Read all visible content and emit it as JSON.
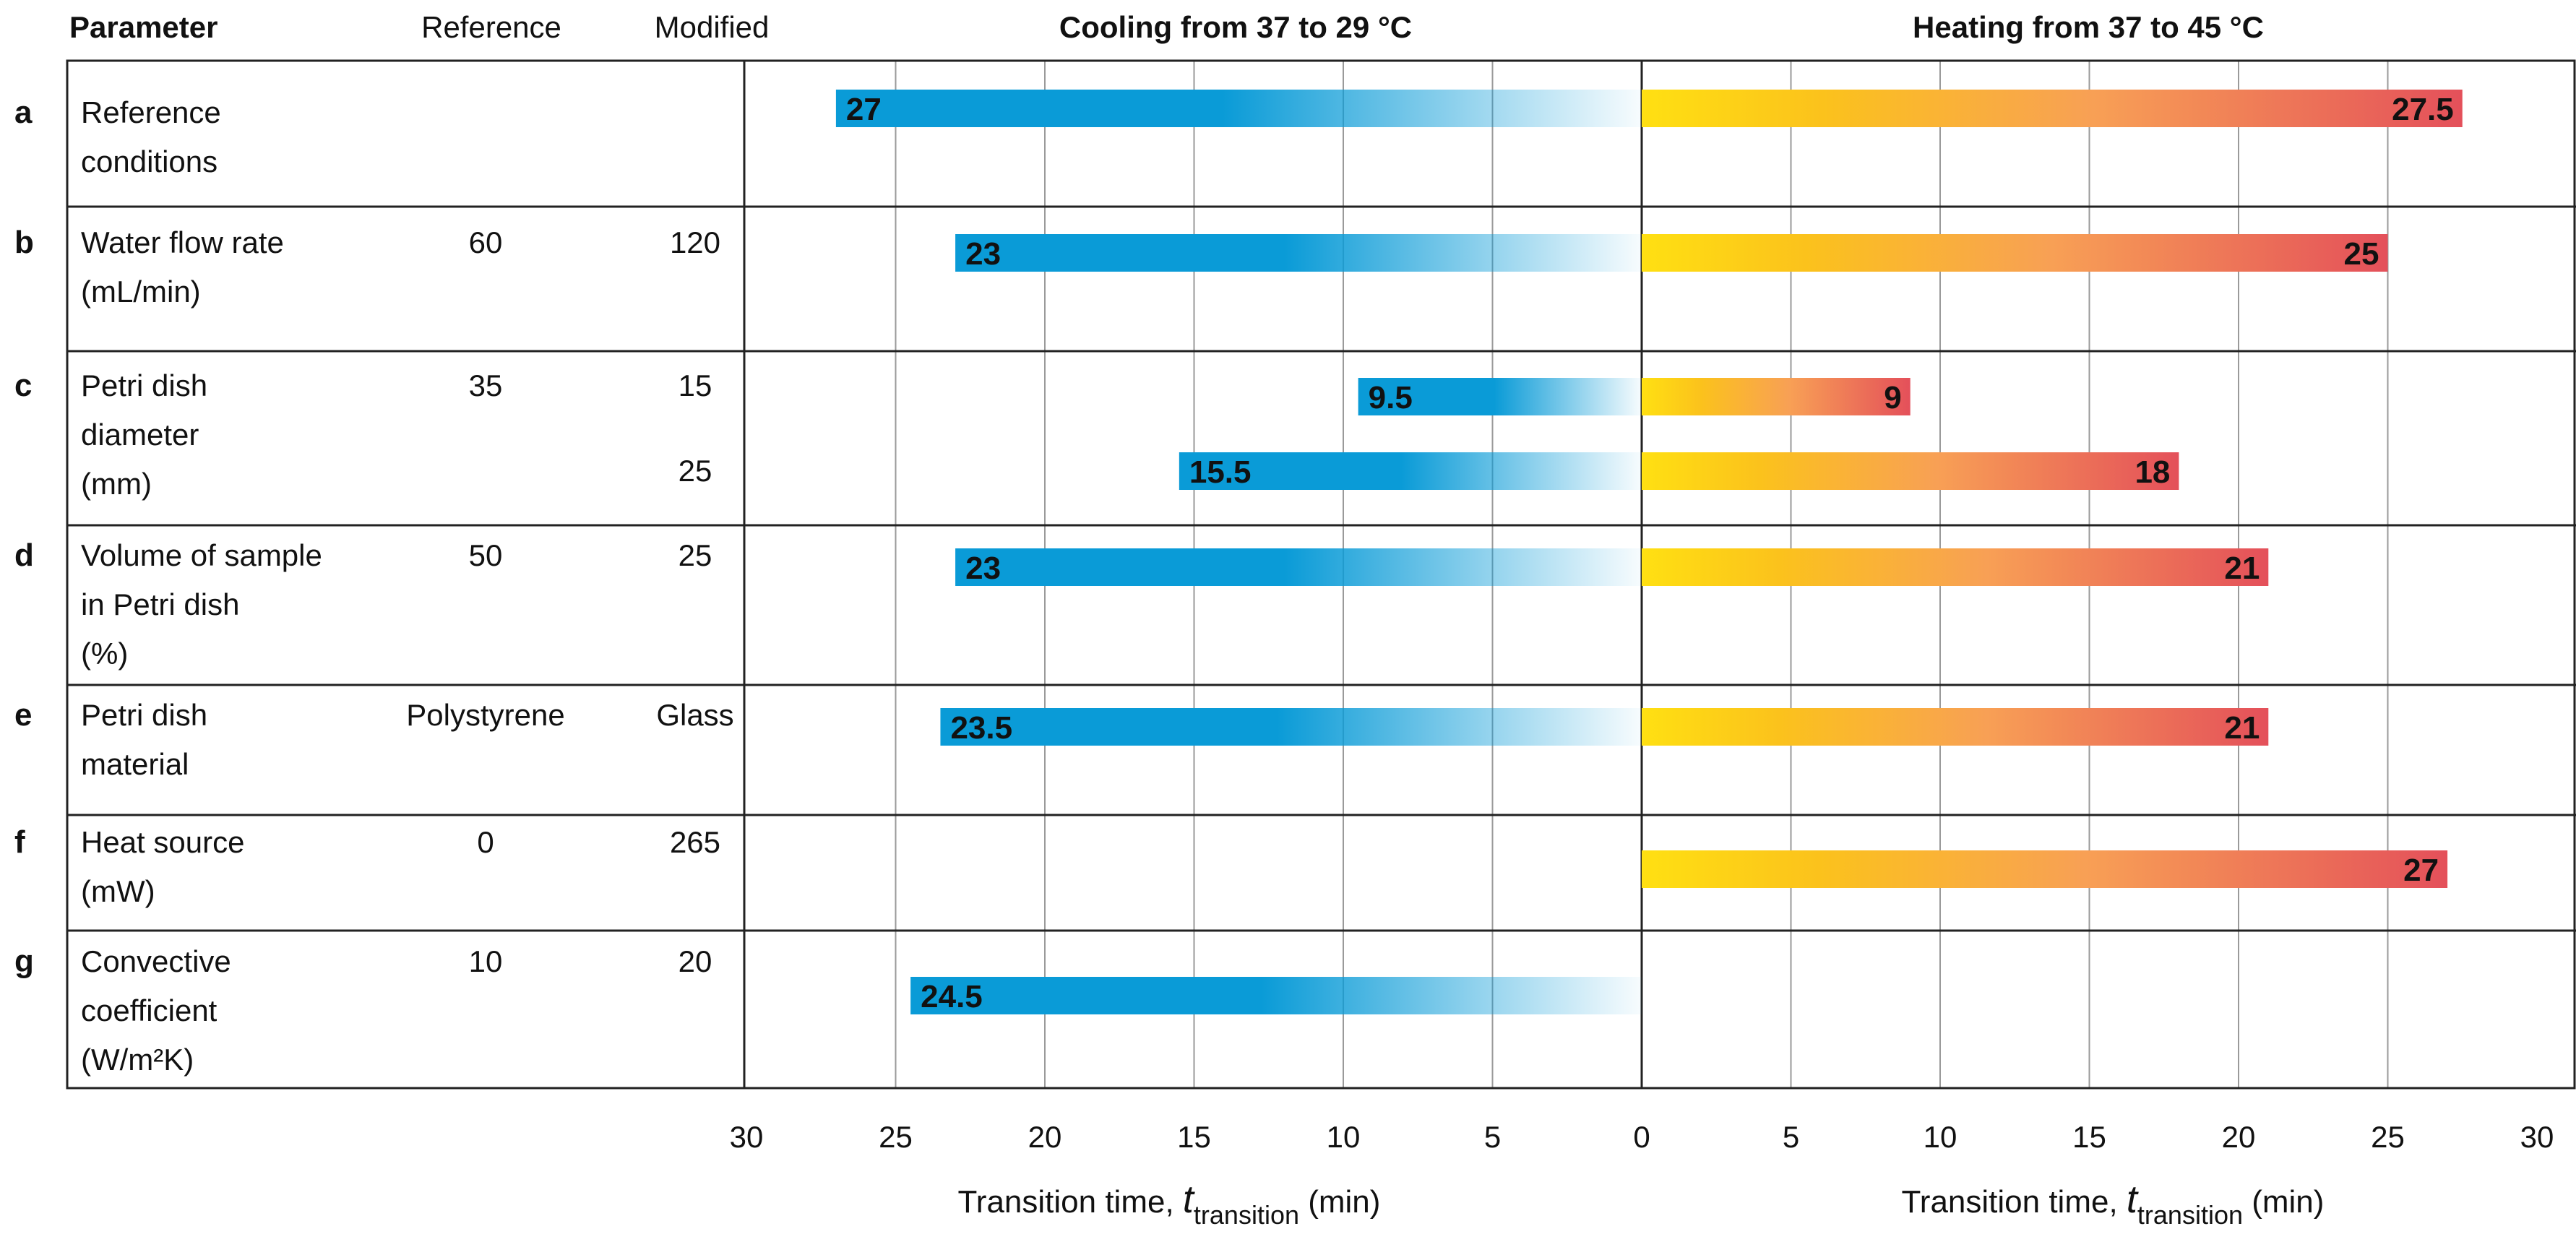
{
  "header": {
    "parameter": "Parameter",
    "reference": "Reference",
    "modified": "Modified",
    "cooling": "Cooling from 37 to 29 °C",
    "heating": "Heating from 37 to 45 °C"
  },
  "axis": {
    "label_main": "Transition time, ",
    "label_t": "t",
    "label_sub": "transition",
    "label_unit": " (min)"
  },
  "rows": [
    {
      "letter": "a",
      "param": [
        "Reference",
        "conditions"
      ],
      "reference": "",
      "modified": [
        ""
      ]
    },
    {
      "letter": "b",
      "param": [
        "Water flow rate",
        "(mL/min)"
      ],
      "reference": "60",
      "modified": [
        "120"
      ]
    },
    {
      "letter": "c",
      "param": [
        "Petri dish",
        "diameter",
        "(mm)"
      ],
      "reference": "35",
      "modified": [
        "15",
        "25"
      ]
    },
    {
      "letter": "d",
      "param": [
        "Volume of sample",
        "in Petri dish",
        "(%)"
      ],
      "reference": "50",
      "modified": [
        "25"
      ]
    },
    {
      "letter": "e",
      "param": [
        "Petri dish",
        "material"
      ],
      "reference": "Polystyrene",
      "modified": [
        "Glass"
      ]
    },
    {
      "letter": "f",
      "param": [
        "Heat source",
        "(mW)"
      ],
      "reference": "0",
      "modified": [
        "265"
      ]
    },
    {
      "letter": "g",
      "param": [
        "Convective",
        "coefficient",
        "(W/m²K)"
      ],
      "reference": "10",
      "modified": [
        "20"
      ]
    }
  ],
  "chart_data": [
    {
      "type": "bar",
      "title": "Cooling from 37 to 29 °C",
      "xlabel": "Transition time, t_transition (min)",
      "xlim": [
        30,
        0
      ],
      "x_reversed": true,
      "ticks": [
        30,
        25,
        20,
        15,
        10,
        5,
        0
      ],
      "grid": true,
      "categories": [
        "a",
        "b",
        "c (15 mm)",
        "c (25 mm)",
        "d",
        "e",
        "f",
        "g"
      ],
      "values": [
        27,
        23,
        9.5,
        15.5,
        23,
        23.5,
        null,
        24.5
      ],
      "labels": [
        "27",
        "23",
        "9.5",
        "15.5",
        "23",
        "23.5",
        "",
        "24.5"
      ],
      "color": "#0a9bd7"
    },
    {
      "type": "bar",
      "title": "Heating from 37 to 45 °C",
      "xlabel": "Transition time, t_transition (min)",
      "xlim": [
        0,
        30
      ],
      "ticks": [
        0,
        5,
        10,
        15,
        20,
        25,
        30
      ],
      "grid": true,
      "categories": [
        "a",
        "b",
        "c (15 mm)",
        "c (25 mm)",
        "d",
        "e",
        "f",
        "g"
      ],
      "values": [
        27.5,
        25,
        9,
        18,
        21,
        21,
        27,
        null
      ],
      "labels": [
        "27.5",
        "25",
        "9",
        "18",
        "21",
        "21",
        "27",
        ""
      ],
      "color_start": "#ffe012",
      "color_end": "#e4505a"
    }
  ]
}
